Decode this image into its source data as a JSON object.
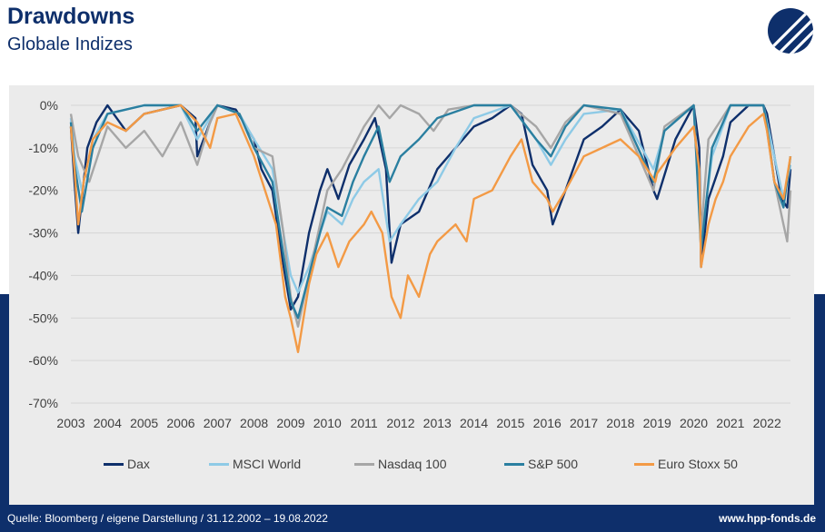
{
  "header": {
    "title": "Drawdowns",
    "subtitle": "Globale Indizes"
  },
  "footer": {
    "source": "Quelle: Bloomberg / eigene Darstellung / 31.12.2002 – 19.08.2022",
    "website": "www.hpp-fonds.de"
  },
  "colors": {
    "background_band": "#0e2f6b",
    "plot_area": "#ebebeb",
    "logo": "#0e2f6b"
  },
  "icons": {
    "logo": "hpp-stripes-logo"
  },
  "chart_data": {
    "type": "line",
    "y_tick_labels": [
      "0%",
      "-10%",
      "-20%",
      "-30%",
      "-40%",
      "-50%",
      "-60%",
      "-70%"
    ],
    "y_tick_values": [
      0,
      -10,
      -20,
      -30,
      -40,
      -50,
      -60,
      -70
    ],
    "ylim": [
      -70,
      0
    ],
    "x_tick_labels": [
      "2003",
      "2004",
      "2005",
      "2006",
      "2007",
      "2008",
      "2009",
      "2010",
      "2011",
      "2012",
      "2013",
      "2014",
      "2015",
      "2016",
      "2017",
      "2018",
      "2019",
      "2020",
      "2021",
      "2022"
    ],
    "xlim": [
      2003.0,
      2022.64
    ],
    "grid": true,
    "legend_position": "bottom",
    "series": [
      {
        "name": "Dax",
        "color": "#0e2f6b",
        "x": [
          2003.0,
          2003.1,
          2003.2,
          2003.3,
          2003.45,
          2003.7,
          2004.0,
          2004.5,
          2005.0,
          2005.5,
          2006.0,
          2006.4,
          2006.45,
          2006.8,
          2007.0,
          2007.5,
          2008.0,
          2008.2,
          2008.5,
          2008.75,
          2009.0,
          2009.2,
          2009.5,
          2009.8,
          2010.0,
          2010.3,
          2010.6,
          2011.0,
          2011.3,
          2011.6,
          2011.75,
          2012.0,
          2012.5,
          2013.0,
          2013.5,
          2014.0,
          2014.5,
          2015.0,
          2015.3,
          2015.6,
          2016.0,
          2016.15,
          2016.5,
          2017.0,
          2017.5,
          2018.0,
          2018.5,
          2018.9,
          2019.0,
          2019.5,
          2020.0,
          2020.15,
          2020.2,
          2020.4,
          2020.8,
          2021.0,
          2021.5,
          2021.9,
          2022.0,
          2022.2,
          2022.4,
          2022.55,
          2022.64
        ],
        "y": [
          -5,
          -18,
          -30,
          -22,
          -10,
          -4,
          0,
          -6,
          -2,
          -1,
          0,
          -3,
          -12,
          -4,
          0,
          -1,
          -8,
          -15,
          -20,
          -35,
          -48,
          -45,
          -30,
          -20,
          -15,
          -22,
          -14,
          -8,
          -3,
          -15,
          -37,
          -28,
          -25,
          -15,
          -10,
          -5,
          -3,
          0,
          -2,
          -14,
          -20,
          -28,
          -20,
          -8,
          -5,
          -1,
          -6,
          -20,
          -22,
          -8,
          0,
          -10,
          -38,
          -22,
          -12,
          -4,
          0,
          0,
          -2,
          -12,
          -22,
          -24,
          -15
        ]
      },
      {
        "name": "MSCI World",
        "color": "#8ecae6",
        "x": [
          2003.0,
          2003.1,
          2003.3,
          2003.6,
          2004.0,
          2005.0,
          2006.0,
          2006.45,
          2007.0,
          2007.6,
          2008.0,
          2008.5,
          2008.8,
          2009.0,
          2009.2,
          2009.5,
          2009.8,
          2010.0,
          2010.4,
          2010.7,
          2011.0,
          2011.4,
          2011.7,
          2012.0,
          2012.5,
          2013.0,
          2013.5,
          2014.0,
          2015.0,
          2015.7,
          2016.1,
          2016.5,
          2017.0,
          2018.0,
          2018.9,
          2019.2,
          2020.0,
          2020.2,
          2020.5,
          2021.0,
          2021.9,
          2022.0,
          2022.45,
          2022.64
        ],
        "y": [
          -3,
          -12,
          -20,
          -8,
          -2,
          0,
          0,
          -8,
          0,
          -2,
          -8,
          -15,
          -30,
          -40,
          -44,
          -38,
          -30,
          -25,
          -28,
          -22,
          -18,
          -15,
          -32,
          -28,
          -22,
          -18,
          -10,
          -3,
          0,
          -8,
          -14,
          -8,
          -2,
          -1,
          -15,
          -6,
          0,
          -32,
          -12,
          0,
          0,
          -4,
          -22,
          -14
        ]
      },
      {
        "name": "Nasdaq 100",
        "color": "#a6a6a6",
        "x": [
          2003.0,
          2003.2,
          2003.5,
          2004.0,
          2004.5,
          2005.0,
          2005.5,
          2006.0,
          2006.45,
          2006.8,
          2007.0,
          2007.6,
          2008.0,
          2008.5,
          2008.8,
          2009.0,
          2009.2,
          2009.5,
          2009.8,
          2010.0,
          2010.4,
          2010.7,
          2011.0,
          2011.4,
          2011.7,
          2012.0,
          2012.5,
          2012.9,
          2013.3,
          2014.0,
          2015.0,
          2015.7,
          2016.1,
          2016.5,
          2017.0,
          2018.0,
          2018.9,
          2019.2,
          2020.0,
          2020.2,
          2020.4,
          2021.0,
          2021.9,
          2022.0,
          2022.2,
          2022.45,
          2022.55,
          2022.64
        ],
        "y": [
          -2,
          -12,
          -18,
          -5,
          -10,
          -6,
          -12,
          -4,
          -14,
          -4,
          0,
          -2,
          -10,
          -12,
          -30,
          -45,
          -52,
          -40,
          -28,
          -20,
          -15,
          -10,
          -5,
          0,
          -3,
          0,
          -2,
          -6,
          -1,
          0,
          0,
          -5,
          -10,
          -4,
          0,
          -2,
          -20,
          -5,
          0,
          -30,
          -8,
          0,
          0,
          -6,
          -18,
          -28,
          -32,
          -20
        ]
      },
      {
        "name": "S&P 500",
        "color": "#2a7fa0",
        "x": [
          2003.0,
          2003.1,
          2003.3,
          2003.6,
          2004.0,
          2005.0,
          2006.0,
          2006.45,
          2007.0,
          2007.6,
          2008.0,
          2008.5,
          2008.8,
          2009.0,
          2009.2,
          2009.5,
          2009.8,
          2010.0,
          2010.4,
          2010.7,
          2011.0,
          2011.4,
          2011.7,
          2012.0,
          2012.5,
          2013.0,
          2014.0,
          2015.0,
          2015.7,
          2016.1,
          2016.5,
          2017.0,
          2018.0,
          2018.9,
          2019.2,
          2020.0,
          2020.2,
          2020.5,
          2021.0,
          2021.9,
          2022.0,
          2022.2,
          2022.45,
          2022.64
        ],
        "y": [
          -4,
          -14,
          -25,
          -10,
          -2,
          0,
          0,
          -6,
          0,
          -2,
          -10,
          -18,
          -35,
          -46,
          -50,
          -40,
          -30,
          -24,
          -26,
          -18,
          -12,
          -5,
          -18,
          -12,
          -8,
          -3,
          0,
          0,
          -8,
          -12,
          -5,
          0,
          -1,
          -18,
          -6,
          0,
          -34,
          -10,
          0,
          0,
          -5,
          -18,
          -24,
          -12
        ]
      },
      {
        "name": "Euro Stoxx 50",
        "color": "#f39a45",
        "x": [
          2003.0,
          2003.1,
          2003.2,
          2003.35,
          2003.6,
          2004.0,
          2004.5,
          2005.0,
          2006.0,
          2006.45,
          2006.8,
          2007.0,
          2007.5,
          2008.0,
          2008.3,
          2008.6,
          2008.85,
          2009.0,
          2009.2,
          2009.5,
          2009.7,
          2010.0,
          2010.3,
          2010.6,
          2011.0,
          2011.2,
          2011.5,
          2011.75,
          2012.0,
          2012.2,
          2012.5,
          2012.8,
          2013.0,
          2013.5,
          2013.8,
          2014.0,
          2014.5,
          2015.0,
          2015.3,
          2015.6,
          2016.0,
          2016.15,
          2016.5,
          2017.0,
          2017.5,
          2018.0,
          2018.5,
          2018.95,
          2019.0,
          2019.5,
          2020.0,
          2020.15,
          2020.2,
          2020.4,
          2020.6,
          2020.8,
          2021.0,
          2021.5,
          2021.9,
          2022.0,
          2022.2,
          2022.45,
          2022.64
        ],
        "y": [
          -5,
          -15,
          -28,
          -18,
          -8,
          -4,
          -6,
          -2,
          0,
          -4,
          -10,
          -3,
          -2,
          -12,
          -20,
          -28,
          -45,
          -50,
          -58,
          -42,
          -35,
          -30,
          -38,
          -32,
          -28,
          -25,
          -30,
          -45,
          -50,
          -40,
          -45,
          -35,
          -32,
          -28,
          -32,
          -22,
          -20,
          -12,
          -8,
          -18,
          -22,
          -25,
          -20,
          -12,
          -10,
          -8,
          -12,
          -18,
          -16,
          -10,
          -5,
          -15,
          -38,
          -28,
          -22,
          -18,
          -12,
          -5,
          -2,
          -6,
          -18,
          -22,
          -12
        ]
      }
    ]
  }
}
